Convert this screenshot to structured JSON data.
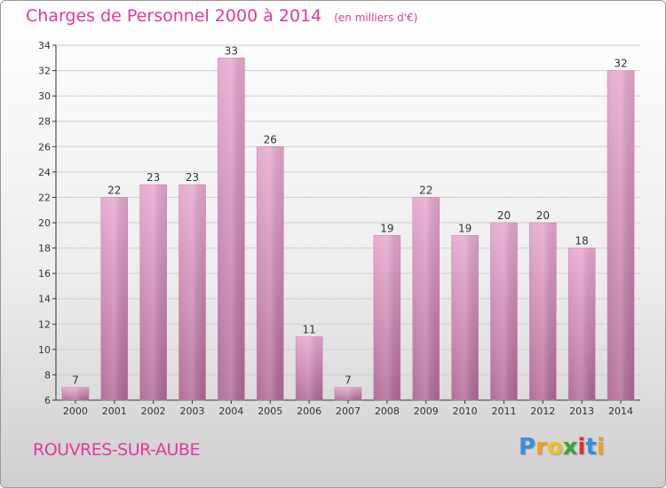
{
  "chart_data": {
    "type": "bar",
    "title": "Charges de Personnel 2000 à 2014",
    "subtitle": "(en milliers d'€)",
    "categories": [
      "2000",
      "2001",
      "2002",
      "2003",
      "2004",
      "2005",
      "2006",
      "2007",
      "2008",
      "2009",
      "2010",
      "2011",
      "2012",
      "2013",
      "2014"
    ],
    "values": [
      7,
      22,
      23,
      23,
      33,
      26,
      11,
      7,
      19,
      22,
      19,
      20,
      20,
      18,
      32
    ],
    "ylim": [
      6,
      34
    ],
    "yticks": [
      6,
      8,
      10,
      12,
      14,
      16,
      18,
      20,
      22,
      24,
      26,
      28,
      30,
      32,
      34
    ],
    "grid": true,
    "bar_color": "#d27bb0"
  },
  "location": "ROUVRES-SUR-AUBE",
  "logo": {
    "letters": [
      "P",
      "r",
      "o",
      "x",
      "i",
      "t",
      "i"
    ],
    "colors": [
      "#3a8fd8",
      "#f0a020",
      "#f0c020",
      "#3aa53a",
      "#e03030",
      "#3a8fd8",
      "#f0a020"
    ]
  },
  "colors": {
    "accent": "#e0399f"
  }
}
